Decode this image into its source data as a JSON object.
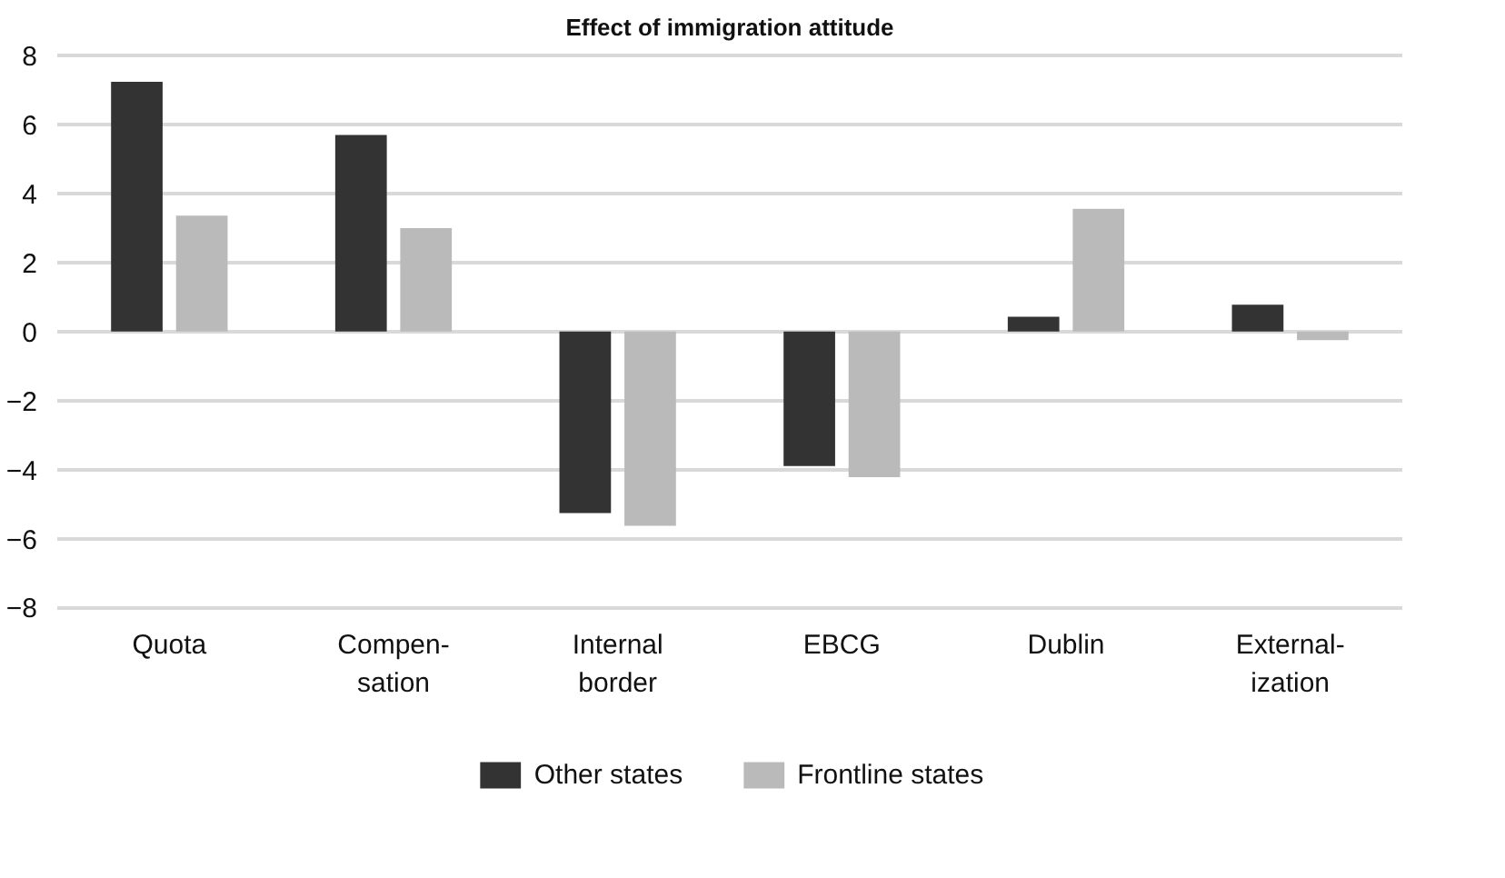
{
  "chart_data": {
    "type": "bar",
    "title": "Effect of immigration attitude",
    "categories": [
      "Quota",
      "Compen-\nsation",
      "Internal\nborder",
      "EBCG",
      "Dublin",
      "External-\nization"
    ],
    "series": [
      {
        "name": "Other states",
        "color": "#333333",
        "values": [
          7.24,
          5.7,
          -5.26,
          -3.9,
          0.43,
          0.78
        ]
      },
      {
        "name": "Frontline states",
        "color": "#bababa",
        "values": [
          3.36,
          3.0,
          -5.63,
          -4.22,
          3.56,
          -0.25
        ]
      }
    ],
    "ylim": [
      -8,
      8
    ],
    "yticks": [
      {
        "value": -8,
        "label": "−8"
      },
      {
        "value": -6,
        "label": "−6"
      },
      {
        "value": -4,
        "label": "−4"
      },
      {
        "value": -2,
        "label": "−2"
      },
      0,
      2,
      4,
      6,
      8
    ],
    "grid": "y",
    "legend": "bottom"
  }
}
